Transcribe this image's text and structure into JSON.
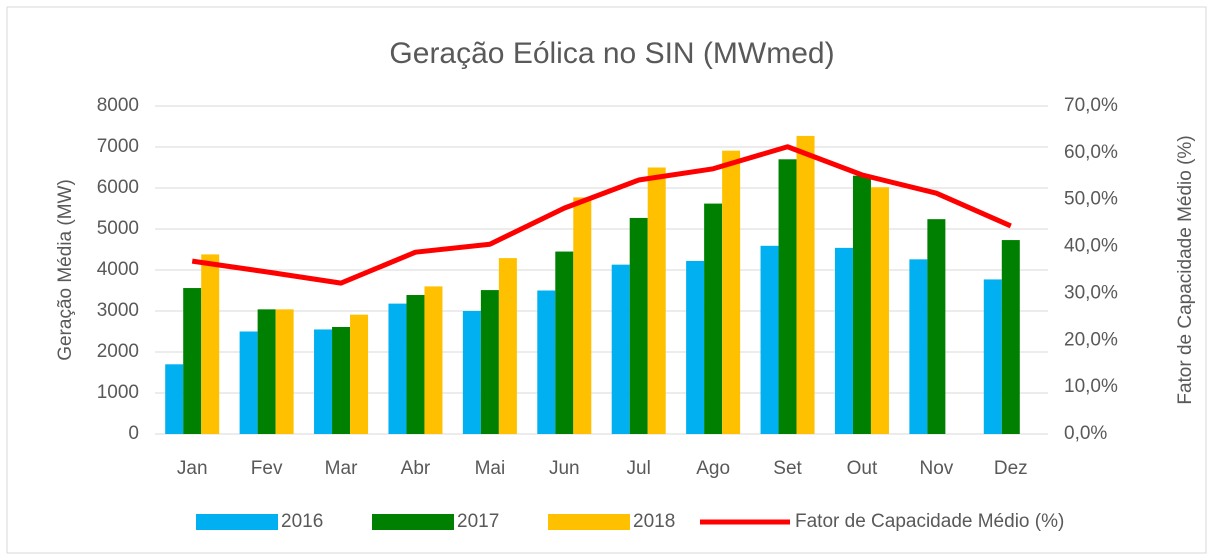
{
  "chart_data": {
    "type": "bar",
    "title": "Geração Eólica no SIN (MWmed)",
    "y_label": "Geração Média (MW)",
    "y2_label": "Fator de Capacidade Médio (%)",
    "categories": [
      "Jan",
      "Fev",
      "Mar",
      "Abr",
      "Mai",
      "Jun",
      "Jul",
      "Ago",
      "Set",
      "Out",
      "Nov",
      "Dez"
    ],
    "series": [
      {
        "name": "2016",
        "color": "#00b0f0",
        "values": [
          1700,
          2500,
          2550,
          3180,
          3000,
          3500,
          4130,
          4220,
          4590,
          4540,
          4260,
          3770
        ]
      },
      {
        "name": "2017",
        "color": "#008000",
        "values": [
          3560,
          3040,
          2610,
          3390,
          3510,
          4450,
          5270,
          5620,
          6700,
          6300,
          5240,
          4730
        ]
      },
      {
        "name": "2018",
        "color": "#ffc000",
        "values": [
          4380,
          3040,
          2910,
          3600,
          4290,
          5770,
          6500,
          6910,
          7270,
          6020,
          null,
          null
        ]
      },
      {
        "name": "Fator de Capacidade Médio (%)",
        "color": "#ff0000",
        "type": "line",
        "axis": "y2",
        "values": [
          36.9,
          34.6,
          32.2,
          38.8,
          40.5,
          48.2,
          54.2,
          56.6,
          61.3,
          55.3,
          51.4,
          44.4
        ]
      }
    ],
    "ylim": [
      0,
      8000
    ],
    "yticks": [
      0,
      1000,
      2000,
      3000,
      4000,
      5000,
      6000,
      7000,
      8000
    ],
    "y2lim": [
      0,
      70
    ],
    "y2ticks": [
      {
        "value": 0,
        "label": "0,0%"
      },
      {
        "value": 10,
        "label": "10,0%"
      },
      {
        "value": 20,
        "label": "20,0%"
      },
      {
        "value": 30,
        "label": "30,0%"
      },
      {
        "value": 40,
        "label": "40,0%"
      },
      {
        "value": 50,
        "label": "50,0%"
      },
      {
        "value": 60,
        "label": "60,0%"
      },
      {
        "value": 70,
        "label": "70,0%"
      }
    ],
    "grid": true,
    "legend": "bottom"
  }
}
